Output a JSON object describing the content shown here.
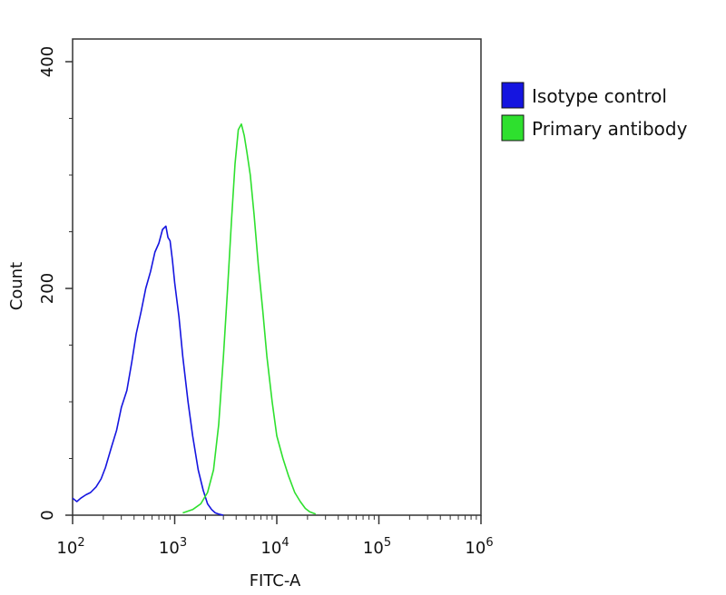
{
  "chart_data": {
    "type": "line",
    "title": "",
    "xlabel": "FITC-A",
    "ylabel": "Count",
    "x_scale": "log",
    "xlim": [
      100,
      1000000
    ],
    "ylim": [
      0,
      420
    ],
    "x_ticks": [
      {
        "value": 100,
        "base": "10",
        "exp": "2"
      },
      {
        "value": 1000,
        "base": "10",
        "exp": "3"
      },
      {
        "value": 10000,
        "base": "10",
        "exp": "4"
      },
      {
        "value": 100000,
        "base": "10",
        "exp": "5"
      },
      {
        "value": 1000000,
        "base": "10",
        "exp": "6"
      }
    ],
    "y_ticks": [
      {
        "value": 0,
        "label": "0"
      },
      {
        "value": 200,
        "label": "200"
      },
      {
        "value": 400,
        "label": "400"
      }
    ],
    "grid": false,
    "legend": {
      "position": "right-top",
      "entries": [
        {
          "name": "Isotype control",
          "color": "#1515e0"
        },
        {
          "name": "Primary antibody",
          "color": "#2ee02e"
        }
      ]
    },
    "series": [
      {
        "name": "Isotype control",
        "color": "#1515e0",
        "x": [
          100,
          110,
          120,
          135,
          150,
          170,
          190,
          210,
          240,
          270,
          300,
          340,
          380,
          420,
          470,
          520,
          580,
          640,
          700,
          760,
          820,
          860,
          900,
          950,
          1000,
          1100,
          1200,
          1350,
          1500,
          1700,
          1900,
          2100,
          2300,
          2500,
          2700,
          3000
        ],
        "y": [
          15,
          12,
          15,
          18,
          20,
          25,
          32,
          42,
          60,
          75,
          95,
          110,
          135,
          160,
          180,
          200,
          215,
          232,
          240,
          252,
          255,
          245,
          242,
          225,
          205,
          175,
          140,
          100,
          70,
          40,
          22,
          10,
          5,
          2,
          1,
          0
        ]
      },
      {
        "name": "Primary antibody",
        "color": "#2ee02e",
        "x": [
          1200,
          1500,
          1800,
          2100,
          2400,
          2700,
          3000,
          3300,
          3600,
          3900,
          4200,
          4500,
          4800,
          5100,
          5500,
          6000,
          6600,
          7300,
          8000,
          9000,
          10000,
          11500,
          13000,
          15000,
          17000,
          19000,
          21000,
          24000
        ],
        "y": [
          2,
          5,
          10,
          20,
          40,
          80,
          140,
          200,
          260,
          310,
          340,
          345,
          335,
          320,
          300,
          265,
          220,
          180,
          140,
          100,
          70,
          50,
          35,
          20,
          12,
          6,
          3,
          1
        ]
      }
    ]
  }
}
